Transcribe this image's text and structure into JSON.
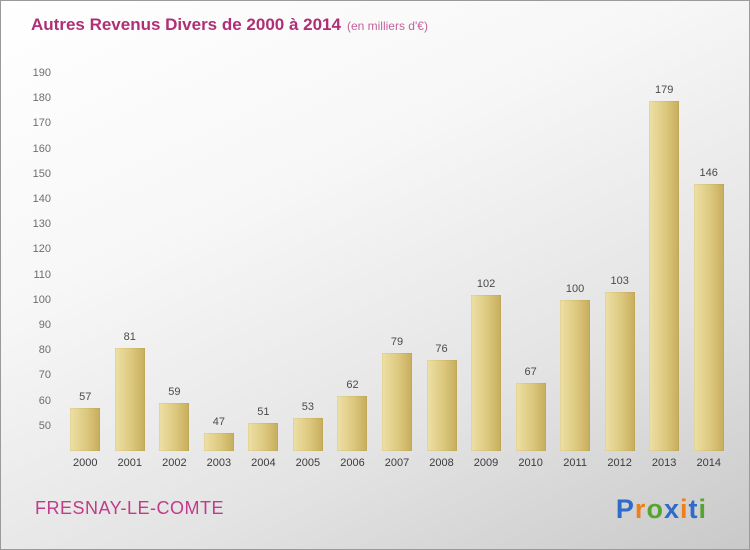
{
  "title": "Autres Revenus Divers de 2000 à 2014",
  "subtitle": "(en milliers d'€)",
  "footer": {
    "place": "FRESNAY-LE-COMTE"
  },
  "logo": {
    "letters": [
      {
        "ch": "P",
        "color": "#2f6bc9"
      },
      {
        "ch": "r",
        "color": "#ef7f1a"
      },
      {
        "ch": "o",
        "color": "#55a630"
      },
      {
        "ch": "x",
        "color": "#2f6bc9"
      },
      {
        "ch": "i",
        "color": "#ef7f1a"
      },
      {
        "ch": "t",
        "color": "#2f6bc9"
      },
      {
        "ch": "i",
        "color": "#55a630"
      }
    ]
  },
  "chart_data": {
    "type": "bar",
    "title": "Autres Revenus Divers de 2000 à 2014",
    "subtitle": "(en milliers d'€)",
    "categories": [
      "2000",
      "2001",
      "2002",
      "2003",
      "2004",
      "2005",
      "2006",
      "2007",
      "2008",
      "2009",
      "2010",
      "2011",
      "2012",
      "2013",
      "2014"
    ],
    "values": [
      57,
      81,
      59,
      47,
      51,
      53,
      62,
      79,
      76,
      102,
      67,
      100,
      103,
      179,
      146
    ],
    "xlabel": "",
    "ylabel": "",
    "ylim": [
      40,
      190
    ],
    "ytick_step": 10,
    "grid": false,
    "legend": false,
    "colors": {
      "bar_light": "#eee0a6",
      "bar_dark": "#c7ad5c",
      "title": "#b02e75",
      "value_label": "#4a4a4a",
      "tick_label": "#6e6e6e"
    }
  }
}
